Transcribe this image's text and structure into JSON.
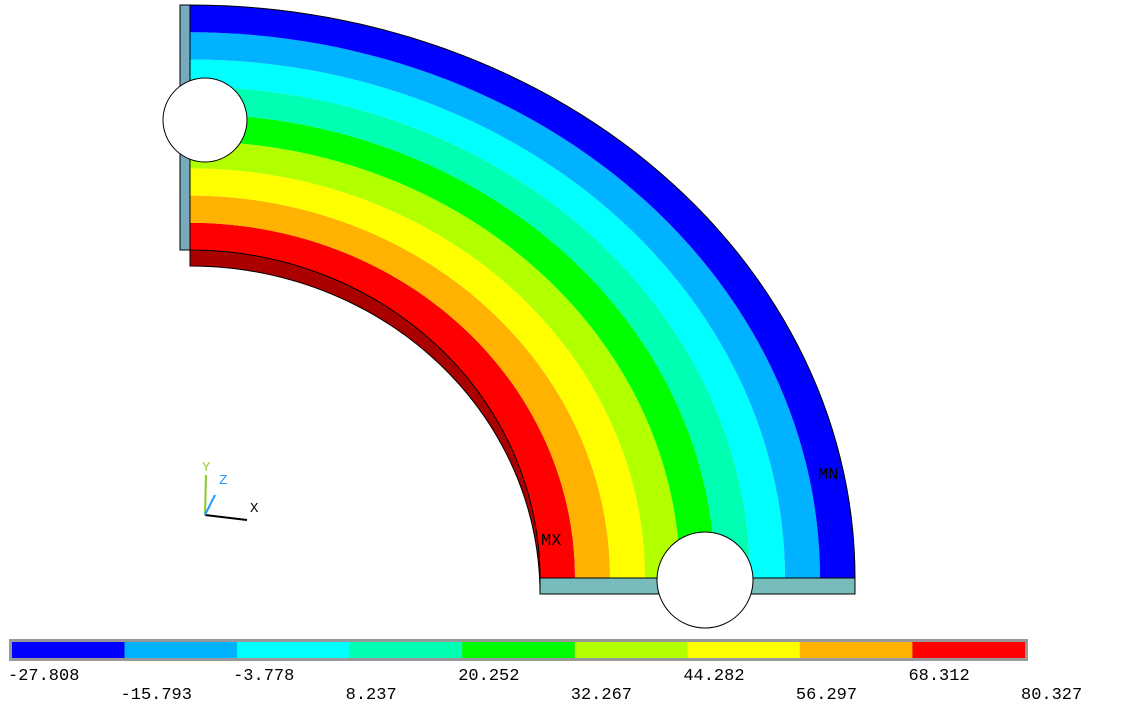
{
  "legend": {
    "colors": [
      "#0000ff",
      "#00b2ff",
      "#00ffff",
      "#00ffb2",
      "#00ff00",
      "#b2ff00",
      "#ffff00",
      "#ffb200",
      "#ff0000"
    ],
    "labels": [
      "-27.808",
      "-15.793",
      "-3.778",
      "8.237",
      "20.252",
      "32.267",
      "44.282",
      "56.297",
      "68.312",
      "80.327"
    ]
  },
  "annotations": {
    "max": "MX",
    "min": "MN"
  },
  "triad": {
    "x": "X",
    "y": "Y",
    "z": "Z"
  }
}
